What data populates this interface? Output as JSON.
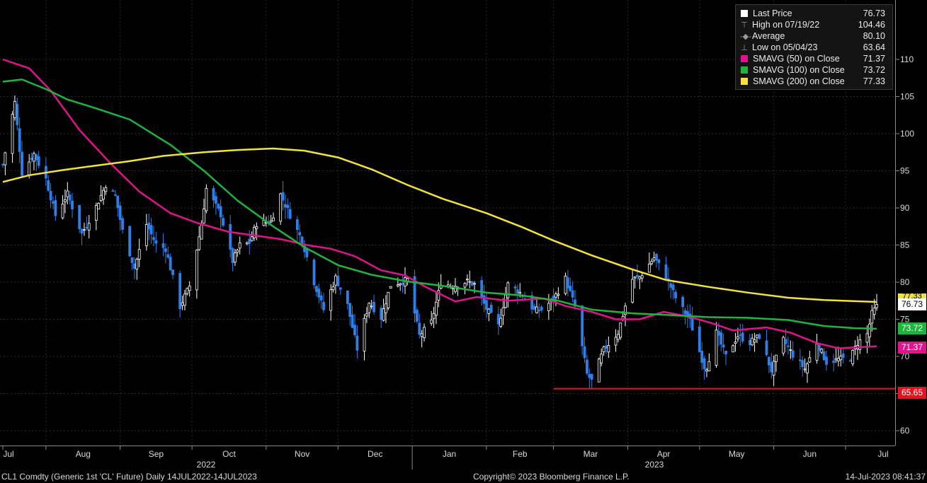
{
  "legend": {
    "last_price_label": "Last Price",
    "last_price_value": "76.73",
    "high_label": "High on 07/19/22",
    "high_value": "104.46",
    "average_label": "Average",
    "average_value": "80.10",
    "low_label": "Low on 05/04/23",
    "low_value": "63.64",
    "sma50_label": "SMAVG (50)  on Close",
    "sma50_value": "71.37",
    "sma100_label": "SMAVG (100)  on Close",
    "sma100_value": "73.72",
    "sma200_label": "SMAVG (200)  on Close",
    "sma200_value": "77.33"
  },
  "tags": {
    "sma200": "77.33",
    "last": "76.73",
    "sma100": "73.72",
    "sma50": "71.37",
    "support": "65.65"
  },
  "colors": {
    "price_up": "#ffffff",
    "price_down": "#2f7fe8",
    "sma50": "#e0128c",
    "sma100": "#1fb53c",
    "sma200": "#f4e23a",
    "support": "#e8121f"
  },
  "footer": {
    "ticker": "CL1 Comdty (Generic 1st 'CL' Future)  Daily 14JUL2022-14JUL2023",
    "copyright": "Copyright© 2023 Bloomberg Finance L.P.",
    "timestamp": "14-Jul-2023 08:41:37"
  },
  "chart_data": {
    "type": "candlestick",
    "x_range": [
      "2022-07-14",
      "2023-07-14"
    ],
    "ylim": [
      58,
      118
    ],
    "y_ticks": [
      60,
      65,
      70,
      75,
      80,
      85,
      90,
      95,
      100,
      105,
      110
    ],
    "x_ticks": [
      "Jul",
      "Aug",
      "Sep",
      "Oct",
      "Nov",
      "Dec",
      "Jan",
      "Feb",
      "Mar",
      "Apr",
      "May",
      "Jun",
      "Jul"
    ],
    "years": [
      "2022",
      "2023"
    ],
    "support_level": 65.65,
    "close_anchors": [
      [
        "2022-07-14",
        95.8
      ],
      [
        "2022-07-19",
        104.2
      ],
      [
        "2022-07-22",
        94.7
      ],
      [
        "2022-07-27",
        97.3
      ],
      [
        "2022-08-01",
        93.9
      ],
      [
        "2022-08-05",
        89.0
      ],
      [
        "2022-08-10",
        91.9
      ],
      [
        "2022-08-16",
        86.5
      ],
      [
        "2022-08-22",
        90.2
      ],
      [
        "2022-08-26",
        93.1
      ],
      [
        "2022-08-30",
        91.6
      ],
      [
        "2022-09-02",
        86.9
      ],
      [
        "2022-09-07",
        81.9
      ],
      [
        "2022-09-12",
        87.8
      ],
      [
        "2022-09-16",
        85.1
      ],
      [
        "2022-09-20",
        84.5
      ],
      [
        "2022-09-26",
        76.7
      ],
      [
        "2022-09-30",
        79.5
      ],
      [
        "2022-10-05",
        87.8
      ],
      [
        "2022-10-07",
        92.6
      ],
      [
        "2022-10-13",
        89.1
      ],
      [
        "2022-10-18",
        82.8
      ],
      [
        "2022-10-21",
        85.0
      ],
      [
        "2022-10-25",
        85.3
      ],
      [
        "2022-10-28",
        87.9
      ],
      [
        "2022-11-03",
        88.2
      ],
      [
        "2022-11-07",
        91.8
      ],
      [
        "2022-11-11",
        89.0
      ],
      [
        "2022-11-16",
        85.6
      ],
      [
        "2022-11-21",
        80.0
      ],
      [
        "2022-11-25",
        76.3
      ],
      [
        "2022-11-30",
        80.6
      ],
      [
        "2022-12-05",
        76.9
      ],
      [
        "2022-12-09",
        71.0
      ],
      [
        "2022-12-14",
        77.3
      ],
      [
        "2022-12-19",
        75.2
      ],
      [
        "2022-12-23",
        79.6
      ],
      [
        "2022-12-30",
        80.3
      ],
      [
        "2023-01-04",
        72.8
      ],
      [
        "2023-01-09",
        74.6
      ],
      [
        "2023-01-13",
        79.9
      ],
      [
        "2023-01-18",
        79.5
      ],
      [
        "2023-01-24",
        80.1
      ],
      [
        "2023-01-27",
        79.7
      ],
      [
        "2023-02-01",
        76.4
      ],
      [
        "2023-02-06",
        74.1
      ],
      [
        "2023-02-10",
        79.7
      ],
      [
        "2023-02-15",
        78.6
      ],
      [
        "2023-02-21",
        76.2
      ],
      [
        "2023-02-24",
        76.3
      ],
      [
        "2023-03-01",
        77.7
      ],
      [
        "2023-03-06",
        80.5
      ],
      [
        "2023-03-10",
        76.7
      ],
      [
        "2023-03-15",
        67.6
      ],
      [
        "2023-03-17",
        66.7
      ],
      [
        "2023-03-22",
        70.9
      ],
      [
        "2023-03-28",
        73.2
      ],
      [
        "2023-04-03",
        80.4
      ],
      [
        "2023-04-06",
        80.7
      ],
      [
        "2023-04-12",
        83.3
      ],
      [
        "2023-04-17",
        80.8
      ],
      [
        "2023-04-21",
        77.9
      ],
      [
        "2023-04-27",
        74.8
      ],
      [
        "2023-05-03",
        68.6
      ],
      [
        "2023-05-04",
        68.6
      ],
      [
        "2023-05-08",
        73.2
      ],
      [
        "2023-05-12",
        70.0
      ],
      [
        "2023-05-17",
        72.8
      ],
      [
        "2023-05-22",
        71.9
      ],
      [
        "2023-05-26",
        72.7
      ],
      [
        "2023-05-31",
        68.1
      ],
      [
        "2023-06-05",
        72.2
      ],
      [
        "2023-06-09",
        70.2
      ],
      [
        "2023-06-14",
        68.3
      ],
      [
        "2023-06-19",
        71.9
      ],
      [
        "2023-06-23",
        69.2
      ],
      [
        "2023-06-28",
        69.6
      ],
      [
        "2023-07-03",
        69.8
      ],
      [
        "2023-07-06",
        71.8
      ],
      [
        "2023-07-10",
        72.99
      ],
      [
        "2023-07-12",
        75.75
      ],
      [
        "2023-07-14",
        76.73
      ]
    ],
    "series": [
      {
        "name": "SMAVG (50)  on Close",
        "points": [
          [
            "2022-07-14",
            110.0
          ],
          [
            "2022-07-25",
            108.8
          ],
          [
            "2022-08-03",
            105.8
          ],
          [
            "2022-08-15",
            100.5
          ],
          [
            "2022-08-28",
            96.0
          ],
          [
            "2022-09-09",
            92.2
          ],
          [
            "2022-09-22",
            89.3
          ],
          [
            "2022-10-03",
            88.0
          ],
          [
            "2022-10-16",
            86.8
          ],
          [
            "2022-10-29",
            86.2
          ],
          [
            "2022-11-07",
            85.8
          ],
          [
            "2022-11-18",
            85.0
          ],
          [
            "2022-11-28",
            84.5
          ],
          [
            "2022-12-08",
            83.5
          ],
          [
            "2022-12-19",
            81.6
          ],
          [
            "2022-12-29",
            80.9
          ],
          [
            "2023-01-07",
            79.3
          ],
          [
            "2023-01-19",
            77.4
          ],
          [
            "2023-01-28",
            78.0
          ],
          [
            "2023-02-10",
            77.5
          ],
          [
            "2023-02-25",
            77.8
          ],
          [
            "2023-03-06",
            76.8
          ],
          [
            "2023-03-17",
            76.0
          ],
          [
            "2023-03-27",
            75.0
          ],
          [
            "2023-04-06",
            75.0
          ],
          [
            "2023-04-16",
            76.0
          ],
          [
            "2023-04-26",
            75.4
          ],
          [
            "2023-05-06",
            74.5
          ],
          [
            "2023-05-15",
            73.5
          ],
          [
            "2023-05-29",
            73.9
          ],
          [
            "2023-06-08",
            73.2
          ],
          [
            "2023-06-19",
            71.8
          ],
          [
            "2023-06-28",
            71.1
          ],
          [
            "2023-07-14",
            71.37
          ]
        ]
      },
      {
        "name": "SMAVG (100)  on Close",
        "points": [
          [
            "2022-07-14",
            107.0
          ],
          [
            "2022-07-22",
            107.3
          ],
          [
            "2022-08-01",
            106.0
          ],
          [
            "2022-08-10",
            104.6
          ],
          [
            "2022-08-22",
            103.4
          ],
          [
            "2022-09-05",
            101.9
          ],
          [
            "2022-09-22",
            98.5
          ],
          [
            "2022-10-06",
            95.0
          ],
          [
            "2022-10-20",
            91.0
          ],
          [
            "2022-11-04",
            87.5
          ],
          [
            "2022-11-17",
            84.7
          ],
          [
            "2022-12-01",
            82.3
          ],
          [
            "2022-12-15",
            81.0
          ],
          [
            "2022-12-30",
            80.1
          ],
          [
            "2023-01-14",
            79.5
          ],
          [
            "2023-02-01",
            78.6
          ],
          [
            "2023-02-16",
            78.2
          ],
          [
            "2023-03-03",
            77.5
          ],
          [
            "2023-03-17",
            76.3
          ],
          [
            "2023-04-03",
            75.8
          ],
          [
            "2023-04-17",
            75.6
          ],
          [
            "2023-05-04",
            75.3
          ],
          [
            "2023-05-21",
            75.2
          ],
          [
            "2023-06-07",
            74.9
          ],
          [
            "2023-06-22",
            74.1
          ],
          [
            "2023-07-05",
            73.8
          ],
          [
            "2023-07-14",
            73.72
          ]
        ]
      },
      {
        "name": "SMAVG (200)  on Close",
        "points": [
          [
            "2022-07-14",
            93.5
          ],
          [
            "2022-07-25",
            94.4
          ],
          [
            "2022-08-08",
            95.1
          ],
          [
            "2022-08-22",
            95.7
          ],
          [
            "2022-09-05",
            96.3
          ],
          [
            "2022-09-19",
            97.0
          ],
          [
            "2022-10-06",
            97.5
          ],
          [
            "2022-10-20",
            97.8
          ],
          [
            "2022-11-04",
            98.0
          ],
          [
            "2022-11-17",
            97.7
          ],
          [
            "2022-12-01",
            96.8
          ],
          [
            "2022-12-15",
            95.2
          ],
          [
            "2022-12-30",
            93.1
          ],
          [
            "2023-01-14",
            91.2
          ],
          [
            "2023-02-01",
            89.3
          ],
          [
            "2023-02-16",
            87.4
          ],
          [
            "2023-03-01",
            85.6
          ],
          [
            "2023-03-17",
            83.6
          ],
          [
            "2023-04-03",
            81.7
          ],
          [
            "2023-04-17",
            80.3
          ],
          [
            "2023-05-04",
            79.4
          ],
          [
            "2023-05-21",
            78.6
          ],
          [
            "2023-06-07",
            77.9
          ],
          [
            "2023-06-22",
            77.6
          ],
          [
            "2023-07-14",
            77.33
          ]
        ]
      }
    ]
  }
}
